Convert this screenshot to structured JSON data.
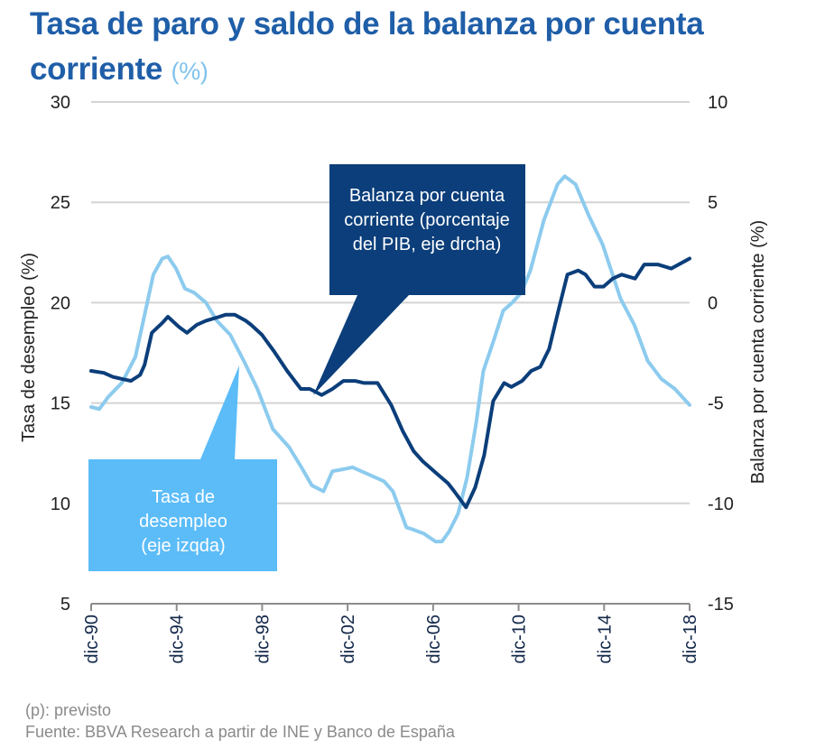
{
  "title": {
    "main": "Tasa de paro y saldo de la balanza por cuenta corriente",
    "unit": "(%)"
  },
  "colors": {
    "title": "#1f5ea8",
    "unit": "#7fc3ec",
    "unemployment_line": "#8ccbee",
    "balance_line": "#0b3e7a",
    "callout_dark": "#0b3e7a",
    "callout_light": "#5bbcf8",
    "grid": "#d4d4d4",
    "axis": "#8c8c8c",
    "footnote": "#8a8a8a"
  },
  "footnotes": {
    "note": "(p): previsto",
    "source": "Fuente: BBVA Research a partir de INE y Banco de España"
  },
  "callouts": {
    "balance": [
      "Balanza por cuenta",
      "corriente (porcentaje",
      "del PIB, eje drcha)"
    ],
    "unemployment": [
      "Tasa de",
      "desempleo",
      "(eje izqda)"
    ]
  },
  "chart_data": {
    "type": "line",
    "title": "Tasa de paro y saldo de la balanza por cuenta corriente (%)",
    "xlabel": "",
    "ylabel": "Tasa de desempleo (%)",
    "y2label": "Balanza por cuenta corriente (%)",
    "xlim": [
      1990.92,
      2018.92
    ],
    "ylim": [
      5,
      30
    ],
    "y2lim": [
      -15,
      10
    ],
    "yticks": [
      30,
      25,
      20,
      15,
      10,
      5
    ],
    "y2ticks": [
      10,
      5,
      0,
      -5,
      -10,
      -15
    ],
    "xticks": [
      {
        "x": 1990.92,
        "label": "dic-90"
      },
      {
        "x": 1994.92,
        "label": "dic-94"
      },
      {
        "x": 1998.92,
        "label": "dic-98"
      },
      {
        "x": 2002.92,
        "label": "dic-02"
      },
      {
        "x": 2006.92,
        "label": "dic-06"
      },
      {
        "x": 2010.92,
        "label": "dic-10"
      },
      {
        "x": 2014.92,
        "label": "dic-14"
      },
      {
        "x": 2018.92,
        "label": "dic-18"
      }
    ],
    "grid": true,
    "legend": "callouts",
    "series": [
      {
        "name": "Tasa de desempleo (eje izqda)",
        "axis": "left",
        "x": [
          1990.92,
          1991.3,
          1991.72,
          1992.35,
          1992.99,
          1993.32,
          1993.83,
          1994.25,
          1994.51,
          1994.89,
          1995.31,
          1995.74,
          1996.29,
          1996.8,
          1997.43,
          1998.06,
          1998.7,
          1999.42,
          2000.18,
          2000.81,
          2001.24,
          2001.79,
          2002.21,
          2002.72,
          2003.14,
          2003.56,
          2003.99,
          2004.62,
          2005.04,
          2005.67,
          2005.97,
          2006.48,
          2007.03,
          2007.33,
          2007.67,
          2008.09,
          2008.51,
          2008.93,
          2009.27,
          2009.78,
          2010.2,
          2010.62,
          2011.05,
          2011.47,
          2012.1,
          2012.74,
          2013.08,
          2013.58,
          2014.22,
          2014.85,
          2015.69,
          2016.33,
          2016.96,
          2017.6,
          2018.23,
          2018.92
        ],
        "values": [
          14.8,
          14.7,
          15.3,
          16.0,
          17.3,
          18.9,
          21.4,
          22.2,
          22.3,
          21.7,
          20.7,
          20.5,
          20.0,
          19.1,
          18.4,
          17.1,
          15.7,
          13.7,
          12.8,
          11.7,
          10.9,
          10.6,
          11.6,
          11.7,
          11.8,
          11.6,
          11.4,
          11.1,
          10.6,
          8.8,
          8.7,
          8.5,
          8.1,
          8.1,
          8.6,
          9.5,
          11.3,
          14.0,
          16.6,
          18.2,
          19.6,
          20.0,
          20.5,
          21.6,
          24.1,
          25.9,
          26.3,
          25.9,
          24.3,
          22.9,
          20.2,
          18.9,
          17.1,
          16.2,
          15.7,
          14.9
        ]
      },
      {
        "name": "Balanza por cuenta corriente (porcentaje del PIB, eje drcha)",
        "axis": "right",
        "x": [
          1990.92,
          1991.51,
          1991.94,
          1992.36,
          1992.78,
          1993.21,
          1993.42,
          1993.76,
          1994.26,
          1994.51,
          1995.02,
          1995.4,
          1995.86,
          1996.29,
          1996.92,
          1997.22,
          1997.64,
          1998.15,
          1998.4,
          1998.91,
          1999.46,
          2000.09,
          2000.73,
          2001.15,
          2001.7,
          2002.21,
          2002.72,
          2003.27,
          2003.69,
          2004.32,
          2004.96,
          2005.5,
          2006.01,
          2006.43,
          2007.07,
          2007.62,
          2007.91,
          2008.46,
          2008.89,
          2009.31,
          2009.73,
          2010.24,
          2010.58,
          2011.08,
          2011.51,
          2011.93,
          2012.35,
          2012.78,
          2013.2,
          2013.71,
          2014.05,
          2014.47,
          2014.89,
          2015.32,
          2015.74,
          2016.37,
          2016.8,
          2017.43,
          2018.06,
          2018.92
        ],
        "values": [
          -3.4,
          -3.5,
          -3.7,
          -3.8,
          -3.9,
          -3.6,
          -3.1,
          -1.5,
          -1.0,
          -0.7,
          -1.2,
          -1.5,
          -1.1,
          -0.9,
          -0.7,
          -0.6,
          -0.6,
          -0.9,
          -1.1,
          -1.6,
          -2.4,
          -3.4,
          -4.3,
          -4.3,
          -4.6,
          -4.3,
          -3.9,
          -3.9,
          -4.0,
          -4.0,
          -5.1,
          -6.4,
          -7.4,
          -7.9,
          -8.5,
          -9.0,
          -9.4,
          -10.2,
          -9.2,
          -7.6,
          -4.9,
          -4.0,
          -4.2,
          -3.9,
          -3.4,
          -3.2,
          -2.3,
          -0.4,
          1.4,
          1.6,
          1.4,
          0.8,
          0.8,
          1.2,
          1.4,
          1.2,
          1.9,
          1.9,
          1.7,
          2.2
        ]
      }
    ]
  }
}
